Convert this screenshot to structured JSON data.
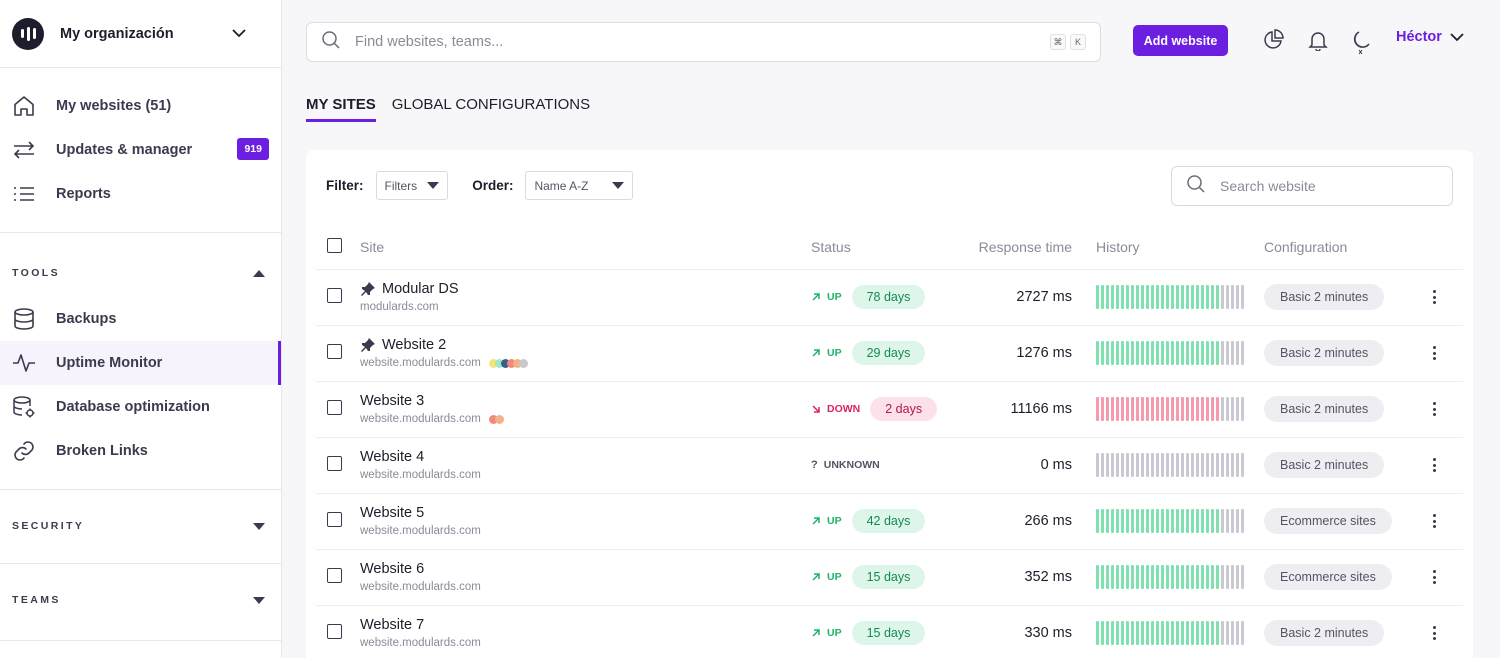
{
  "org": {
    "name": "My organización",
    "logo_icon": "bars-logo-icon"
  },
  "nav": {
    "main": [
      {
        "label": "My websites (51)",
        "icon": "home-icon"
      },
      {
        "label": "Updates & manager",
        "icon": "arrows-swap-icon",
        "badge": "919"
      },
      {
        "label": "Reports",
        "icon": "list-icon"
      }
    ],
    "tools_title": "TOOLS",
    "tools": [
      {
        "label": "Backups",
        "icon": "database-icon"
      },
      {
        "label": "Uptime Monitor",
        "icon": "activity-icon",
        "active": true
      },
      {
        "label": "Database optimization",
        "icon": "database-gear-icon"
      },
      {
        "label": "Broken Links",
        "icon": "link-icon"
      }
    ],
    "security_title": "SECURITY",
    "teams_title": "TEAMS"
  },
  "topbar": {
    "search_placeholder": "Find websites, teams...",
    "shortcut": [
      "⌘",
      "K"
    ],
    "add_button": "Add website",
    "user": "Héctor"
  },
  "tabs": [
    {
      "label": "MY SITES",
      "active": true
    },
    {
      "label": "GLOBAL CONFIGURATIONS",
      "active": false
    }
  ],
  "filters": {
    "filter_label": "Filter:",
    "filter_value": "Filters",
    "order_label": "Order:",
    "order_value": "Name A-Z",
    "search_placeholder": "Search website"
  },
  "table": {
    "headers": {
      "site": "Site",
      "status": "Status",
      "response": "Response time",
      "history": "History",
      "config": "Configuration"
    },
    "rows": [
      {
        "name": "Modular DS",
        "url": "modulards.com",
        "pinned": true,
        "dots": [],
        "status": "UP",
        "status_type": "up",
        "duration": "78 days",
        "response": "2727 ms",
        "history": "up",
        "config": "Basic 2 minutes"
      },
      {
        "name": "Website 2",
        "url": "website.modulards.com",
        "pinned": true,
        "dots": [
          "#f5e27a",
          "#a4e6c9",
          "#3a5f8a",
          "#f08a7a",
          "#f5b08a",
          "#c8c8cc"
        ],
        "status": "UP",
        "status_type": "up",
        "duration": "29 days",
        "response": "1276 ms",
        "history": "up",
        "config": "Basic 2 minutes"
      },
      {
        "name": "Website 3",
        "url": "website.modulards.com",
        "pinned": false,
        "dots": [
          "#f08a7a",
          "#f5b08a"
        ],
        "status": "DOWN",
        "status_type": "down",
        "duration": "2 days",
        "response": "11166 ms",
        "history": "down",
        "config": "Basic 2 minutes"
      },
      {
        "name": "Website 4",
        "url": "website.modulards.com",
        "pinned": false,
        "dots": [],
        "status": "UNKNOWN",
        "status_type": "unknown",
        "duration": "",
        "response": "0 ms",
        "history": "unknown",
        "config": "Basic 2 minutes"
      },
      {
        "name": "Website 5",
        "url": "website.modulards.com",
        "pinned": false,
        "dots": [],
        "status": "UP",
        "status_type": "up",
        "duration": "42 days",
        "response": "266 ms",
        "history": "up",
        "config": "Ecommerce sites"
      },
      {
        "name": "Website 6",
        "url": "website.modulards.com",
        "pinned": false,
        "dots": [],
        "status": "UP",
        "status_type": "up",
        "duration": "15 days",
        "response": "352 ms",
        "history": "up",
        "config": "Ecommerce sites"
      },
      {
        "name": "Website 7",
        "url": "website.modulards.com",
        "pinned": false,
        "dots": [],
        "status": "UP",
        "status_type": "up",
        "duration": "15 days",
        "response": "330 ms",
        "history": "up",
        "config": "Basic 2 minutes"
      }
    ]
  },
  "colors": {
    "accent": "#6c1fe0",
    "up": "#7fe0b0",
    "down": "#f79aae",
    "unknown": "#c9c9d3"
  }
}
